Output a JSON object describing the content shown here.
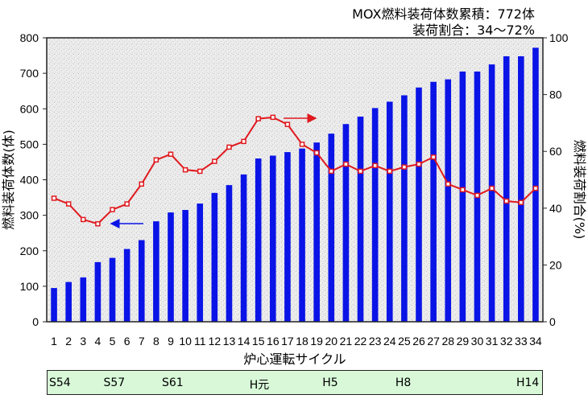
{
  "annotations": {
    "line1": "MOX燃料装荷体数累積：772体",
    "line2": "装荷割合：34～72%"
  },
  "chart_data": {
    "type": "bar",
    "xlabel": "炉心運転サイクル",
    "ylabel": "燃料装荷体数(体)",
    "y2label": "燃料装荷割合(%)",
    "ylim": [
      0,
      800
    ],
    "y2lim": [
      0,
      100
    ],
    "yticks": [
      0,
      100,
      200,
      300,
      400,
      500,
      600,
      700,
      800
    ],
    "y2ticks": [
      0,
      20,
      40,
      60,
      80,
      100
    ],
    "categories": [
      "1",
      "2",
      "3",
      "4",
      "5",
      "6",
      "7",
      "8",
      "9",
      "10",
      "11",
      "12",
      "13",
      "14",
      "15",
      "16",
      "17",
      "18",
      "19",
      "20",
      "21",
      "22",
      "23",
      "24",
      "25",
      "26",
      "27",
      "28",
      "29",
      "30",
      "31",
      "32",
      "33",
      "34"
    ],
    "grid": false,
    "series": [
      {
        "axis": "left",
        "type": "bar",
        "color": "#0a14e6",
        "values": [
          95,
          112,
          125,
          168,
          180,
          205,
          230,
          283,
          308,
          315,
          333,
          363,
          385,
          415,
          460,
          468,
          478,
          488,
          505,
          530,
          557,
          578,
          602,
          620,
          638,
          660,
          676,
          683,
          705,
          705,
          725,
          748,
          748,
          772
        ]
      },
      {
        "axis": "right",
        "type": "line",
        "color": "#e0191e",
        "values": [
          43.5,
          41.5,
          36,
          34.5,
          39.5,
          41.5,
          48.5,
          57,
          59,
          53.5,
          53,
          56.5,
          61.5,
          63.5,
          71.5,
          72,
          69.5,
          62.5,
          59.5,
          53,
          55.5,
          53,
          55,
          53,
          54.5,
          55.5,
          58,
          48.5,
          46.5,
          44.5,
          47,
          42.5,
          42,
          47
        ]
      }
    ]
  },
  "era": {
    "labels": [
      {
        "text": "S54",
        "cycle": 1
      },
      {
        "text": "S57",
        "cycle": 5
      },
      {
        "text": "S61",
        "cycle": 9
      },
      {
        "text": "H元",
        "cycle": 15
      },
      {
        "text": "H5",
        "cycle": 20
      },
      {
        "text": "H8",
        "cycle": 25
      },
      {
        "text": "H14",
        "cycle": 34
      }
    ],
    "color": "#d8f8d8"
  }
}
